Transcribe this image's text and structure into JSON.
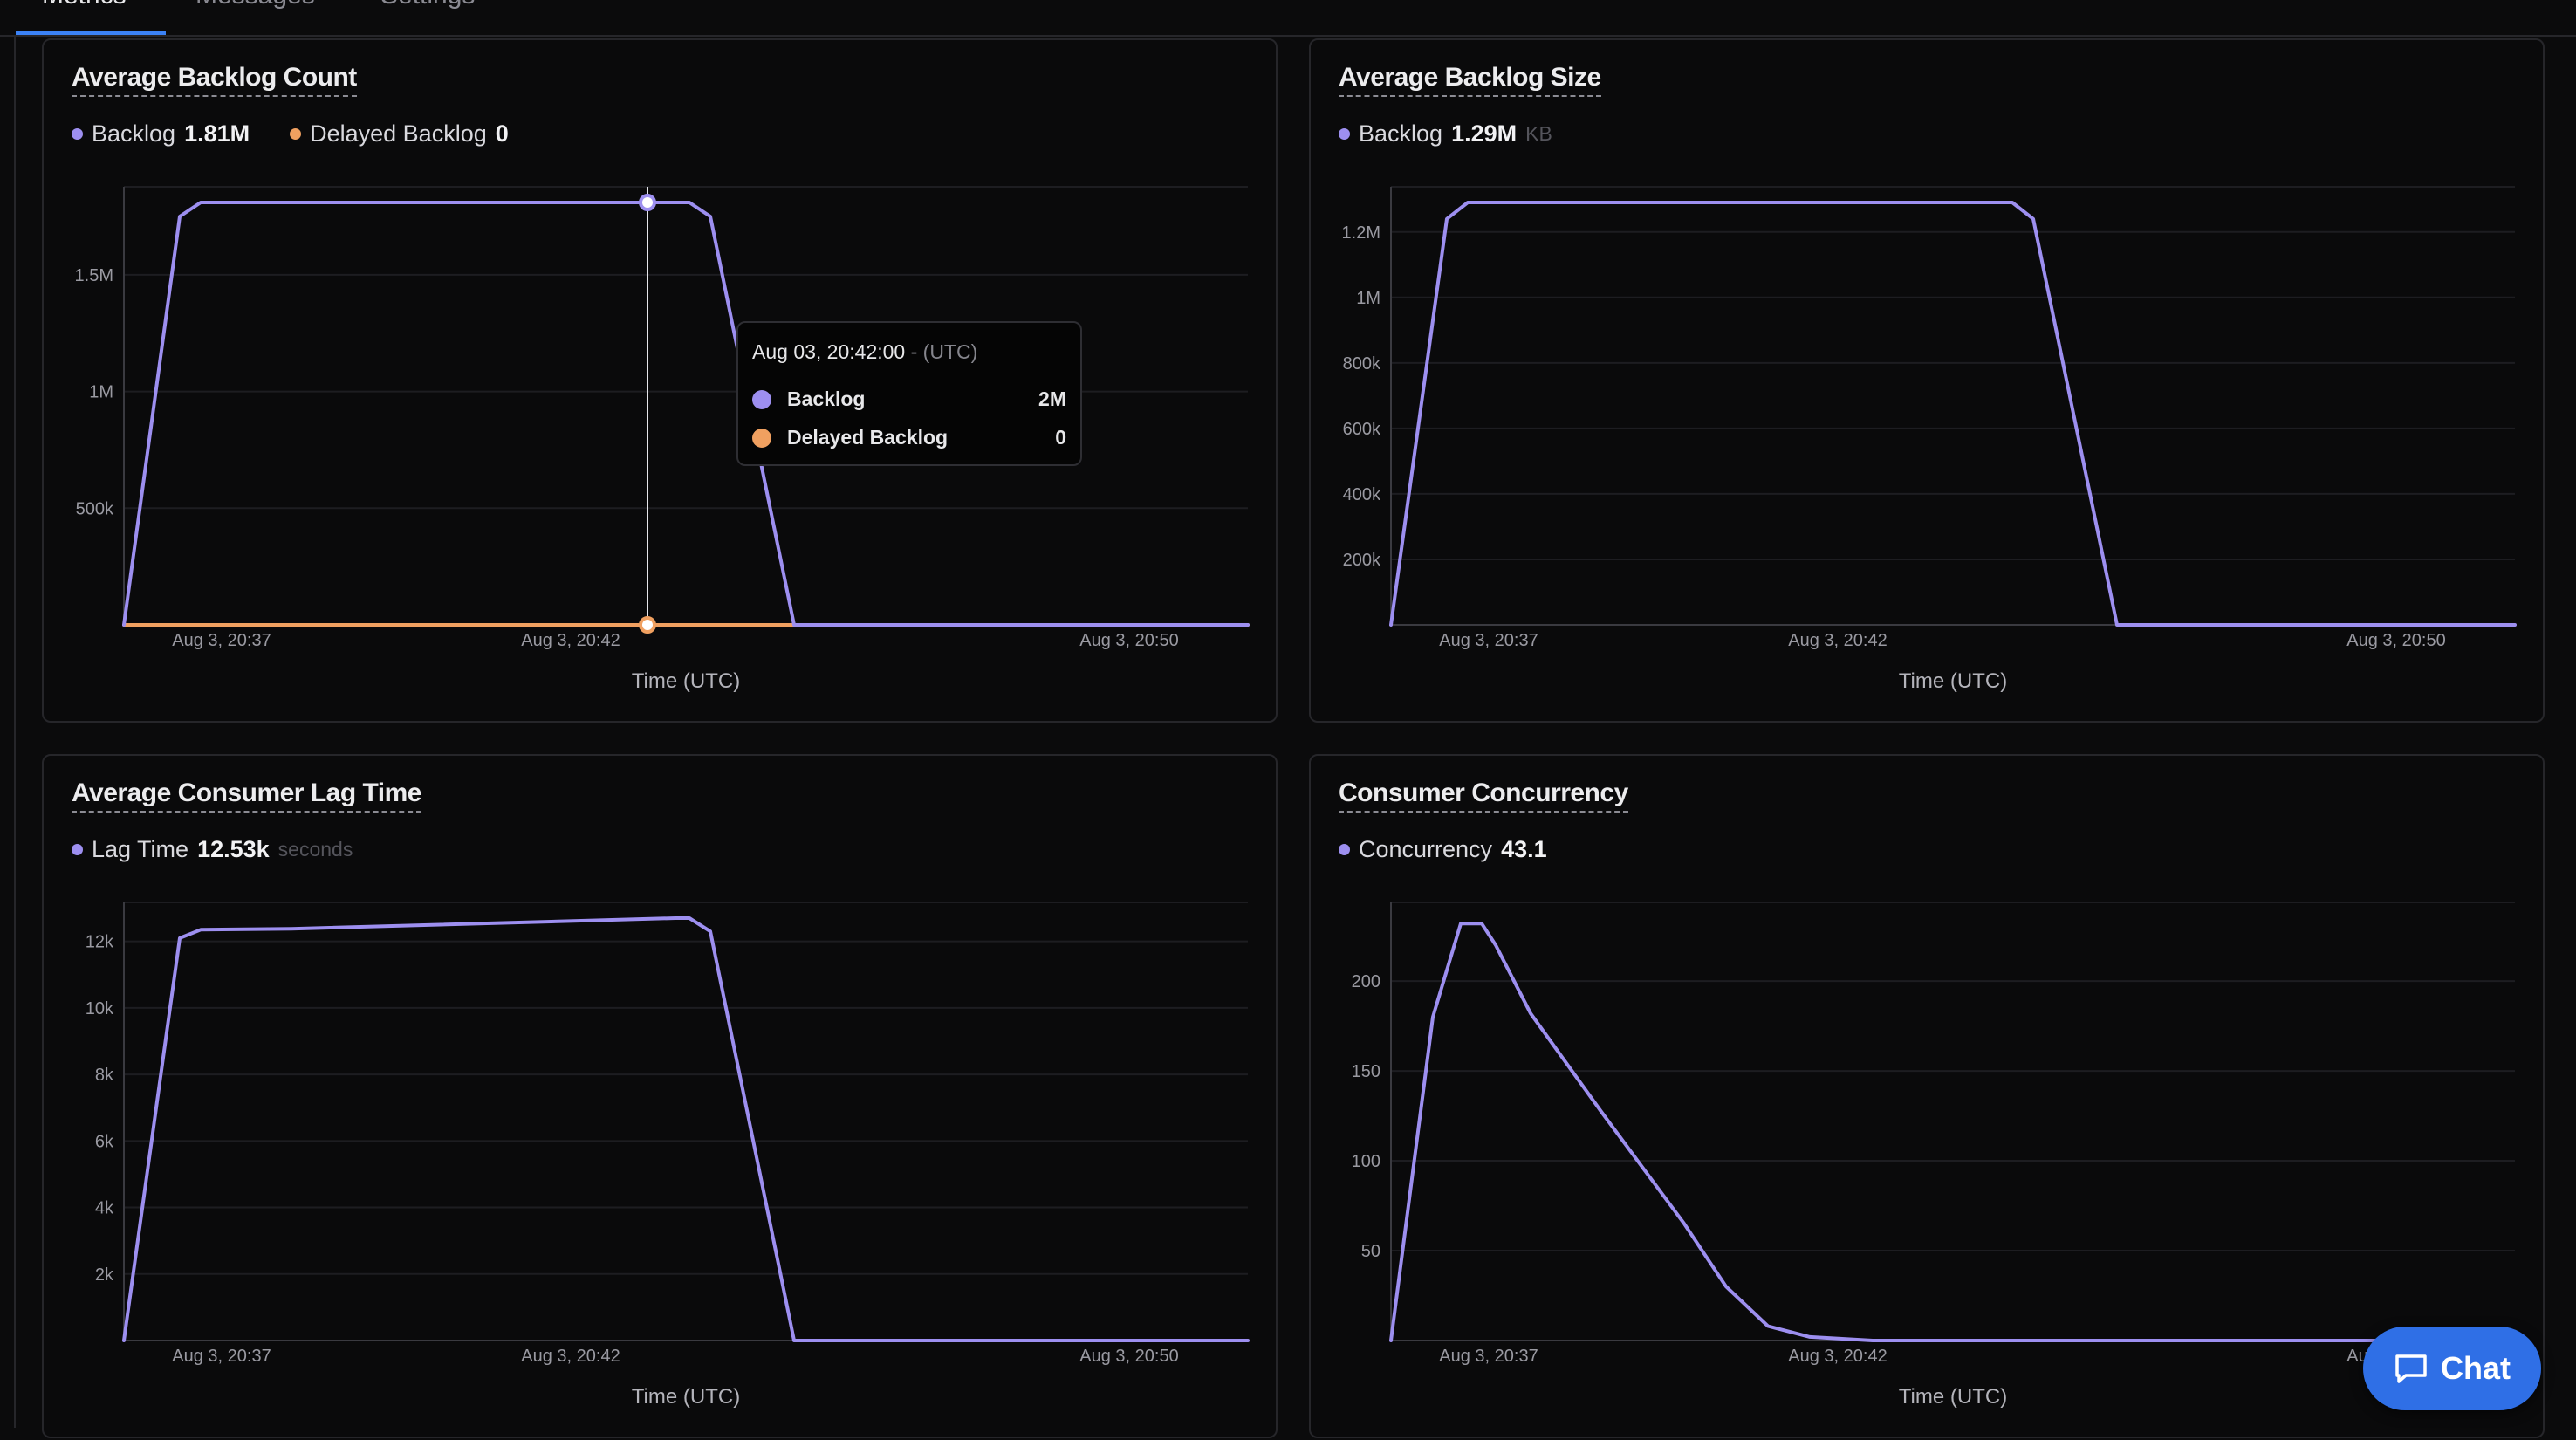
{
  "tabs": [
    {
      "label": "Metrics",
      "active": true
    },
    {
      "label": "Messages",
      "active": false
    },
    {
      "label": "Settings",
      "active": false
    }
  ],
  "colors": {
    "backlog": "#9d8ff0",
    "delayed": "#f0a060",
    "accent": "#3b82f6"
  },
  "cards": [
    {
      "title": "Average Backlog Count",
      "legend": [
        {
          "label": "Backlog",
          "value": "1.81M",
          "unit": "",
          "color": "#9d8ff0"
        },
        {
          "label": "Delayed Backlog",
          "value": "0",
          "unit": "",
          "color": "#f0a060"
        }
      ],
      "xlabel": "Time (UTC)"
    },
    {
      "title": "Average Backlog Size",
      "legend": [
        {
          "label": "Backlog",
          "value": "1.29M",
          "unit": "KB",
          "color": "#9d8ff0"
        }
      ],
      "xlabel": "Time (UTC)"
    },
    {
      "title": "Average Consumer Lag Time",
      "legend": [
        {
          "label": "Lag Time",
          "value": "12.53k",
          "unit": "seconds",
          "color": "#9d8ff0"
        }
      ],
      "xlabel": "Time (UTC)"
    },
    {
      "title": "Consumer Concurrency",
      "legend": [
        {
          "label": "Concurrency",
          "value": "43.1",
          "unit": "",
          "color": "#9d8ff0"
        }
      ],
      "xlabel": "Time (UTC)"
    }
  ],
  "tooltip": {
    "time": "Aug 03, 20:42:00",
    "tz": "- (UTC)",
    "rows": [
      {
        "label": "Backlog",
        "value": "2M",
        "color": "#9d8ff0"
      },
      {
        "label": "Delayed Backlog",
        "value": "0",
        "color": "#f0a060"
      }
    ]
  },
  "chat": {
    "label": "Chat"
  },
  "chart_data": [
    {
      "type": "line",
      "title": "Average Backlog Count",
      "xlabel": "Time (UTC)",
      "xticks": [
        "Aug 3, 20:37",
        "Aug 3, 20:42",
        "Aug 3, 20:50"
      ],
      "xtick_minutes": [
        37,
        42,
        50
      ],
      "xlim": [
        35.6,
        51.7
      ],
      "yticks": [
        {
          "v": 500000,
          "label": "500k"
        },
        {
          "v": 1000000,
          "label": "1M"
        },
        {
          "v": 1500000,
          "label": "1.5M"
        }
      ],
      "ylim": [
        0,
        1810000
      ],
      "series": [
        {
          "name": "Backlog",
          "color": "#9d8ff0",
          "x": [
            35.6,
            36.4,
            36.7,
            43.7,
            44.0,
            45.2,
            51.7
          ],
          "y": [
            0,
            1750000,
            1810000,
            1810000,
            1750000,
            0,
            0
          ]
        },
        {
          "name": "Delayed Backlog",
          "color": "#f0a060",
          "x": [
            35.6,
            51.7
          ],
          "y": [
            0,
            0
          ]
        }
      ],
      "hover_x": 43.1
    },
    {
      "type": "line",
      "title": "Average Backlog Size",
      "xlabel": "Time (UTC)",
      "xticks": [
        "Aug 3, 20:37",
        "Aug 3, 20:42",
        "Aug 3, 20:50"
      ],
      "xtick_minutes": [
        37,
        42,
        50
      ],
      "xlim": [
        35.6,
        51.7
      ],
      "yticks": [
        {
          "v": 200000,
          "label": "200k"
        },
        {
          "v": 400000,
          "label": "400k"
        },
        {
          "v": 600000,
          "label": "600k"
        },
        {
          "v": 800000,
          "label": "800k"
        },
        {
          "v": 1000000,
          "label": "1M"
        },
        {
          "v": 1200000,
          "label": "1.2M"
        }
      ],
      "ylim": [
        0,
        1290000
      ],
      "series": [
        {
          "name": "Backlog",
          "color": "#9d8ff0",
          "x": [
            35.6,
            36.4,
            36.7,
            44.5,
            44.8,
            46.0,
            51.7
          ],
          "y": [
            0,
            1240000,
            1290000,
            1290000,
            1240000,
            0,
            0
          ]
        }
      ]
    },
    {
      "type": "line",
      "title": "Average Consumer Lag Time",
      "xlabel": "Time (UTC)",
      "xticks": [
        "Aug 3, 20:37",
        "Aug 3, 20:42",
        "Aug 3, 20:50"
      ],
      "xtick_minutes": [
        37,
        42,
        50
      ],
      "xlim": [
        35.6,
        51.7
      ],
      "yticks": [
        {
          "v": 2000,
          "label": "2k"
        },
        {
          "v": 4000,
          "label": "4k"
        },
        {
          "v": 6000,
          "label": "6k"
        },
        {
          "v": 8000,
          "label": "8k"
        },
        {
          "v": 10000,
          "label": "10k"
        },
        {
          "v": 12000,
          "label": "12k"
        }
      ],
      "ylim": [
        0,
        12700
      ],
      "series": [
        {
          "name": "Lag Time",
          "color": "#9d8ff0",
          "x": [
            35.6,
            36.4,
            36.7,
            38.0,
            43.5,
            43.7,
            44.0,
            45.2,
            51.7
          ],
          "y": [
            0,
            12100,
            12350,
            12380,
            12700,
            12700,
            12300,
            0,
            0
          ]
        }
      ]
    },
    {
      "type": "line",
      "title": "Consumer Concurrency",
      "xlabel": "Time (UTC)",
      "xticks": [
        "Aug 3, 20:37",
        "Aug 3, 20:42",
        "Aug 3, 20:50"
      ],
      "xtick_minutes": [
        37,
        42,
        50
      ],
      "xlim": [
        35.6,
        51.7
      ],
      "yticks": [
        {
          "v": 50,
          "label": "50"
        },
        {
          "v": 100,
          "label": "100"
        },
        {
          "v": 150,
          "label": "150"
        },
        {
          "v": 200,
          "label": "200"
        }
      ],
      "ylim": [
        0,
        235
      ],
      "series": [
        {
          "name": "Concurrency",
          "color": "#9d8ff0",
          "x": [
            35.6,
            36.2,
            36.6,
            36.9,
            37.1,
            37.6,
            38.6,
            39.8,
            40.4,
            41.0,
            41.6,
            42.5,
            44.0,
            51.7
          ],
          "y": [
            0,
            180,
            232,
            232,
            220,
            182,
            128,
            65,
            30,
            8,
            2,
            0,
            0,
            0
          ]
        }
      ]
    }
  ]
}
